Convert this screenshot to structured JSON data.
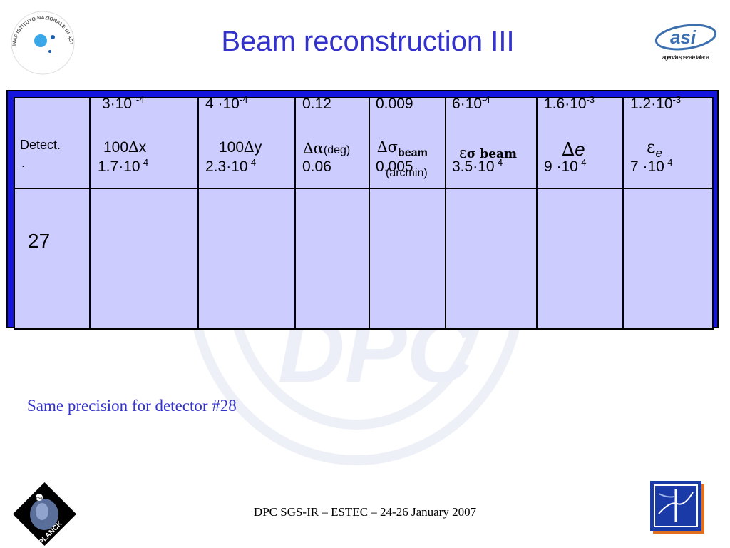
{
  "slide": {
    "title": "Beam reconstruction III",
    "note": "Same precision for detector #28",
    "footer": "DPC SGS-IR – ESTEC – 24-26 January 2007"
  },
  "logos": {
    "inaf": "INAF ISTITUTO NAZIONALE DI ASTROFISICA",
    "asi_mark": "asi",
    "asi_text": "agenzia spaziale italiana",
    "planck": "PLANCK",
    "esa": "esa",
    "watermark": "DPC"
  },
  "table": {
    "headers": {
      "detect": "Detect.",
      "detect_dot": ".",
      "dx_prefix": "100",
      "dx_delta": "∆",
      "dx_var": "x",
      "dy_prefix": "100",
      "dy_delta": "∆",
      "dy_var": "y",
      "dalpha_sym": "∆α",
      "dalpha_unit": "(deg)",
      "dsigma_sym": "∆σ",
      "dsigma_sub": "beam",
      "dsigma_unit": "(arcmin)",
      "esigma_eps": "ε",
      "esigma_sub": "σ beam",
      "de_delta": "∆",
      "de_var": "e",
      "ee_eps": "ε",
      "ee_sub": "e"
    },
    "detector": "27",
    "rows": [
      {
        "dx": {
          "base": "3·10 ",
          "exp": "-4"
        },
        "dy": {
          "base": "4 ·10",
          "exp": "-4"
        },
        "dalpha": "0.12",
        "dsigma": "0.009",
        "esigma": {
          "base": "6·10",
          "exp": "-4"
        },
        "de": {
          "base": "1.6·10",
          "exp": "-3"
        },
        "ee": {
          "base": "1.2·10",
          "exp": "-3"
        }
      },
      {
        "dx": {
          "base": "1.7·10",
          "exp": "-4"
        },
        "dy": {
          "base": "2.3·10",
          "exp": "-4"
        },
        "dalpha": "0.06",
        "dsigma": "0.005",
        "esigma": {
          "base": "3.5·10",
          "exp": "-4"
        },
        "de": {
          "base": "9 ·10",
          "exp": "-4"
        },
        "ee": {
          "base": "7 ·10",
          "exp": "-4"
        }
      }
    ]
  },
  "colors": {
    "title": "#3333cc",
    "table_fill": "#ccccff",
    "table_frame": "#1515e0",
    "note": "#3333cc"
  }
}
